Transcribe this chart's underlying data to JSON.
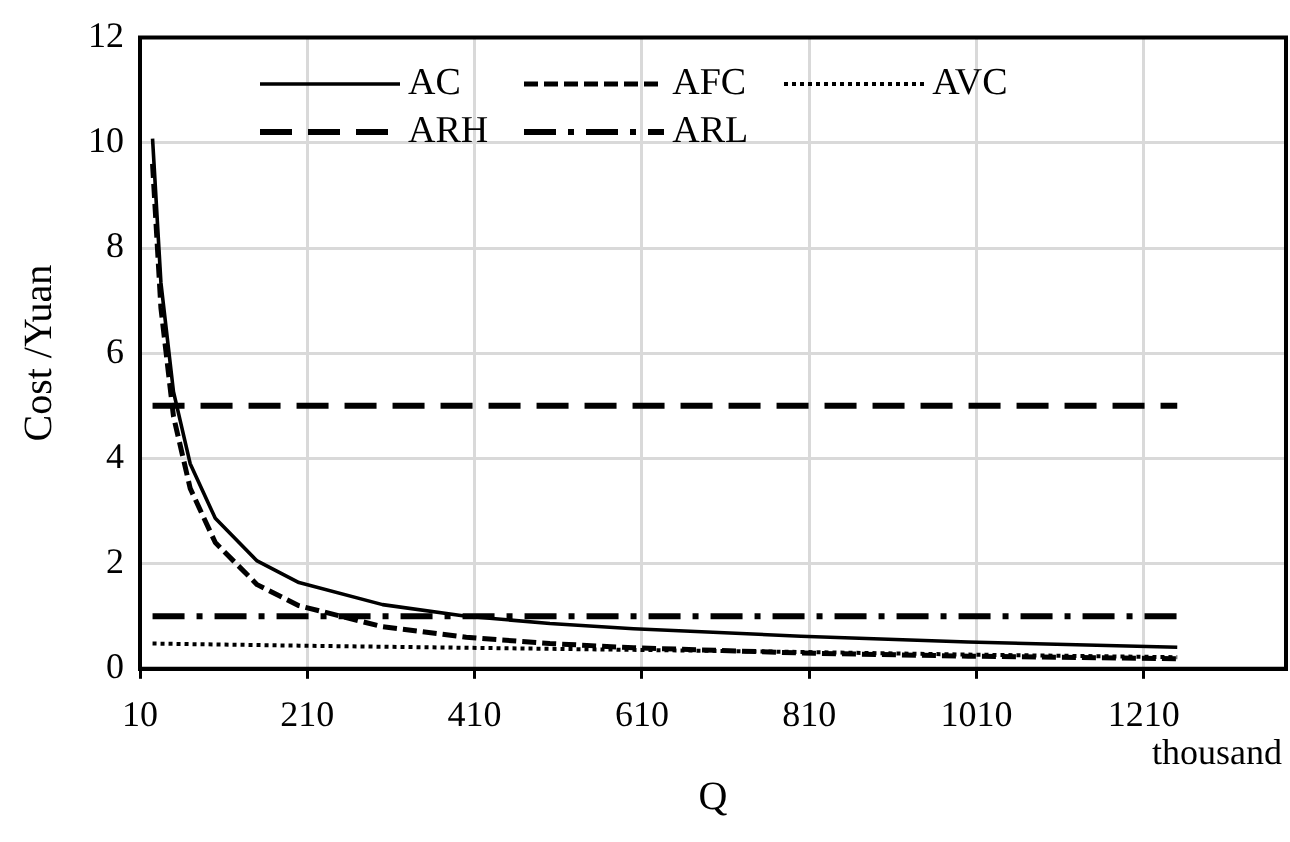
{
  "chart_data": {
    "type": "line",
    "xlabel": "Q",
    "ylabel": "Cost /Yuan",
    "annotations": [
      "thousand"
    ],
    "xlim": [
      10,
      1380
    ],
    "xticks": [
      10,
      210,
      410,
      610,
      810,
      1010,
      1210
    ],
    "ylim": [
      0,
      12
    ],
    "yticks": [
      0,
      2,
      4,
      6,
      8,
      10,
      12
    ],
    "grid": true,
    "legend": "top",
    "marker": "none",
    "series": [
      {
        "name": "AC",
        "color": "#000000",
        "line_style": "solid",
        "x": [
          25,
          35,
          50,
          70,
          100,
          150,
          200,
          300,
          400,
          500,
          600,
          800,
          1000,
          1250
        ],
        "values": [
          10.08,
          7.34,
          5.27,
          3.9,
          2.86,
          2.05,
          1.64,
          1.22,
          1.0,
          0.86,
          0.76,
          0.62,
          0.51,
          0.41
        ]
      },
      {
        "name": "AFC",
        "color": "#000000",
        "line_style": "dashed",
        "x": [
          25,
          35,
          50,
          70,
          100,
          150,
          200,
          300,
          400,
          500,
          600,
          800,
          1000,
          1250
        ],
        "values": [
          9.6,
          6.86,
          4.8,
          3.43,
          2.4,
          1.6,
          1.2,
          0.8,
          0.6,
          0.48,
          0.4,
          0.3,
          0.24,
          0.19
        ]
      },
      {
        "name": "AVC",
        "color": "#000000",
        "line_style": "dotted",
        "x": [
          25,
          200,
          400,
          600,
          800,
          1000,
          1250
        ],
        "values": [
          0.48,
          0.44,
          0.4,
          0.36,
          0.32,
          0.27,
          0.22
        ]
      },
      {
        "name": "ARH",
        "color": "#000000",
        "line_style": "longdash",
        "x": [
          25,
          1250
        ],
        "values": [
          5,
          5
        ]
      },
      {
        "name": "ARL",
        "color": "#000000",
        "line_style": "dashdot",
        "x": [
          25,
          1250
        ],
        "values": [
          1,
          1
        ]
      }
    ]
  }
}
